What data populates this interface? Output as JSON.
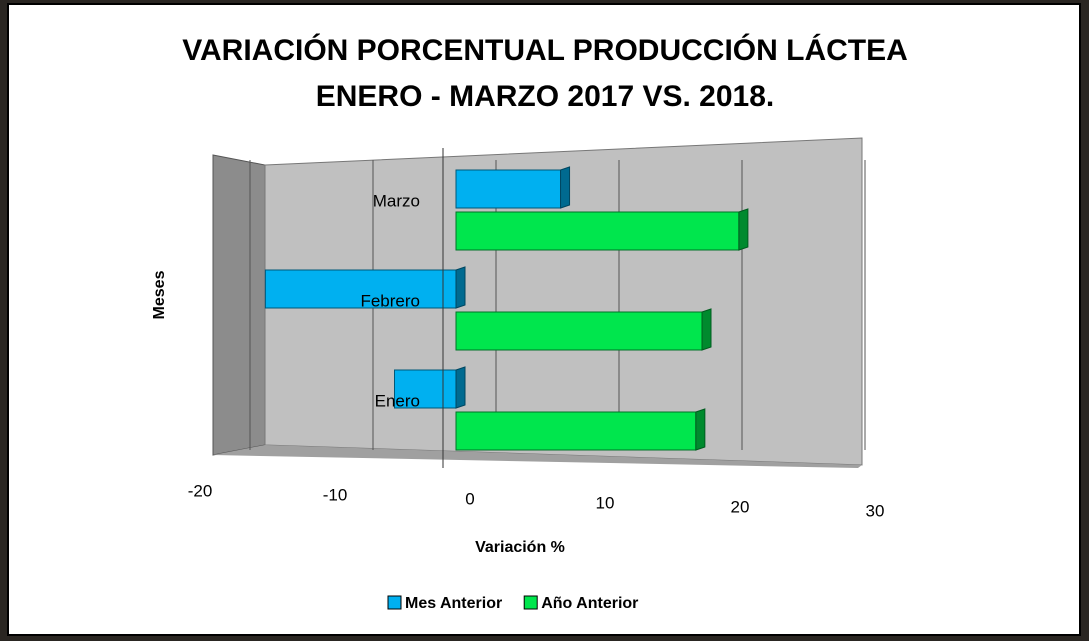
{
  "chart_data": {
    "type": "hbar",
    "title": "VARIACIÓN PORCENTUAL PRODUCCIÓN LÁCTEA",
    "subtitle": "ENERO - MARZO 2017 VS. 2018.",
    "x_label": "Variación %",
    "y_label": "Meses",
    "categories": [
      "Enero",
      "Febrero",
      "Marzo"
    ],
    "series": [
      {
        "name": "Mes Anterior",
        "color": "#00b0f0",
        "values": [
          -5,
          -15.5,
          8.5
        ]
      },
      {
        "name": "Año Anterior",
        "color": "#00e64d",
        "values": [
          19.5,
          20,
          23
        ]
      }
    ],
    "xlim": [
      -20,
      30
    ],
    "xticks": [
      -20,
      -10,
      0,
      10,
      20,
      30
    ],
    "grid": true,
    "legend": "bottom"
  }
}
